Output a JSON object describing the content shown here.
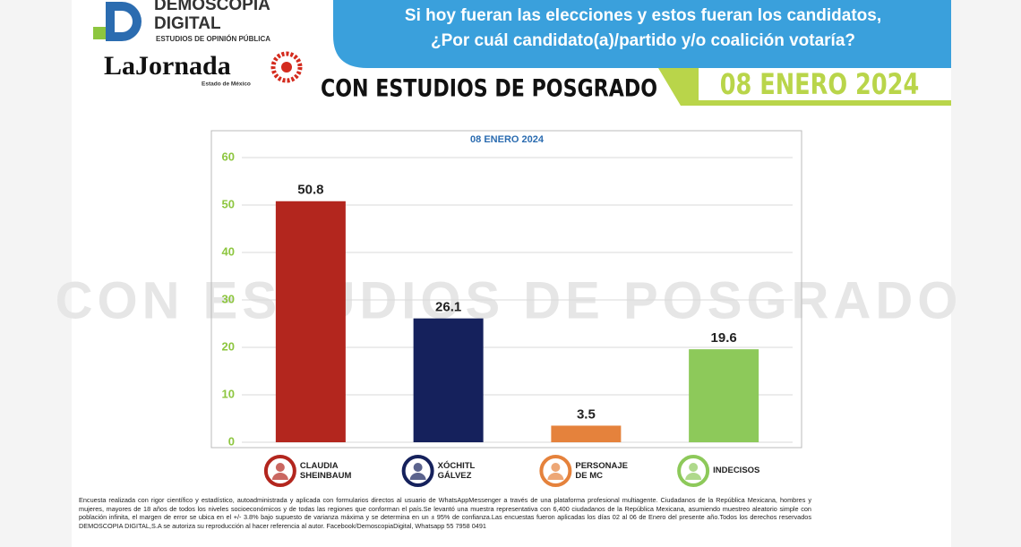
{
  "logo": {
    "brand": "DEMOSCOPIA",
    "brand2": "DIGITAL",
    "tagline": "ESTUDIOS DE OPINIÓN PÚBLICA",
    "partner": "LaJornada",
    "partner_sub": "Estado de México"
  },
  "header": {
    "question": [
      "Si hoy fueran las elecciones y estos fueran los candidatos,",
      "¿Por cuál candidato(a)/partido y/o coalición votaría?"
    ],
    "subtitle": "CON ESTUDIOS DE POSGRADO",
    "date": "08 ENERO 2024"
  },
  "chart_data": {
    "type": "bar",
    "title": "08 ENERO 2024",
    "categories": [
      "CLAUDIA SHEINBAUM",
      "XÓCHITL GÁLVEZ",
      "PERSONAJE DE MC",
      "INDECISOS"
    ],
    "values": [
      50.8,
      26.1,
      3.5,
      19.6
    ],
    "colors": [
      "#b3261e",
      "#15215c",
      "#e5823c",
      "#8dc95a"
    ],
    "ylim": [
      0,
      60
    ],
    "yticks": [
      0,
      10,
      20,
      30,
      40,
      50,
      60
    ],
    "grid": true
  },
  "footer": {
    "text": "Encuesta realizada con rigor científico y estadístico, autoadministrada y aplicada con formularios directos al usuario de WhatsAppMessenger a través de una plataforma profesional multiagente. Ciudadanos de la República Mexicana, hombres y mujeres, mayores de 18 años de todos los niveles socioeconómicos y de todas las regiones que conforman el país.Se levantó una muestra representativa con 6,400 ciudadanos de la República Mexicana, asumiendo muestreo aleatorio simple con población infinita, el margen de error se ubica en el +/- 3.8% bajo supuesto de varianza máxima y se determina en un ± 95% de confianza.Las encuestas fueron aplicadas los días 02 al 06 de Enero del presente año.Todos los derechos reservados DEMOSCOPIA DIGITAL,S.A se autoriza su reproducción al hacer referencia al autor. Facebook/DemoscopiaDigital, Whatsapp 55 7958 0491"
  }
}
